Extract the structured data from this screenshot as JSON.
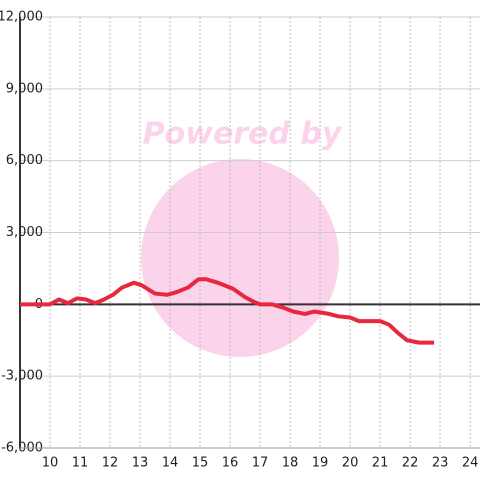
{
  "chart_data": {
    "type": "line",
    "watermark": "Powered by",
    "x": [
      9,
      10,
      10.3,
      10.6,
      10.9,
      11.2,
      11.5,
      11.8,
      12.1,
      12.4,
      12.8,
      13.05,
      13.5,
      13.9,
      14.2,
      14.6,
      14.95,
      15.2,
      15.6,
      16.1,
      16.5,
      16.8,
      17.0,
      17.4,
      17.8,
      18.1,
      18.5,
      18.8,
      19.3,
      19.6,
      20.0,
      20.3,
      21.0,
      21.3,
      21.6,
      21.9,
      22.3,
      22.8
    ],
    "series": [
      {
        "color": "#e8283c",
        "values": [
          0,
          0,
          200,
          50,
          250,
          200,
          50,
          200,
          400,
          700,
          900,
          800,
          450,
          400,
          500,
          700,
          1050,
          1050,
          900,
          650,
          300,
          100,
          0,
          0,
          -150,
          -300,
          -400,
          -300,
          -400,
          -500,
          -550,
          -700,
          -700,
          -850,
          -1200,
          -1500,
          -1600,
          -1600
        ]
      }
    ],
    "xlim": [
      9,
      24.33
    ],
    "xticks": [
      10,
      11,
      12,
      13,
      14,
      15,
      16,
      17,
      18,
      19,
      20,
      21,
      22,
      23,
      24
    ],
    "ylim": [
      -6000,
      12000
    ],
    "yticks": [
      {
        "value": -6000,
        "label": "-6,000"
      },
      {
        "value": -3000,
        "label": "-3,000"
      },
      0,
      {
        "value": 3000,
        "label": "3,000"
      },
      {
        "value": 6000,
        "label": "6,000"
      },
      {
        "value": 9000,
        "label": "9,000"
      },
      {
        "value": 12000,
        "label": "12,000"
      }
    ],
    "grid": true
  }
}
